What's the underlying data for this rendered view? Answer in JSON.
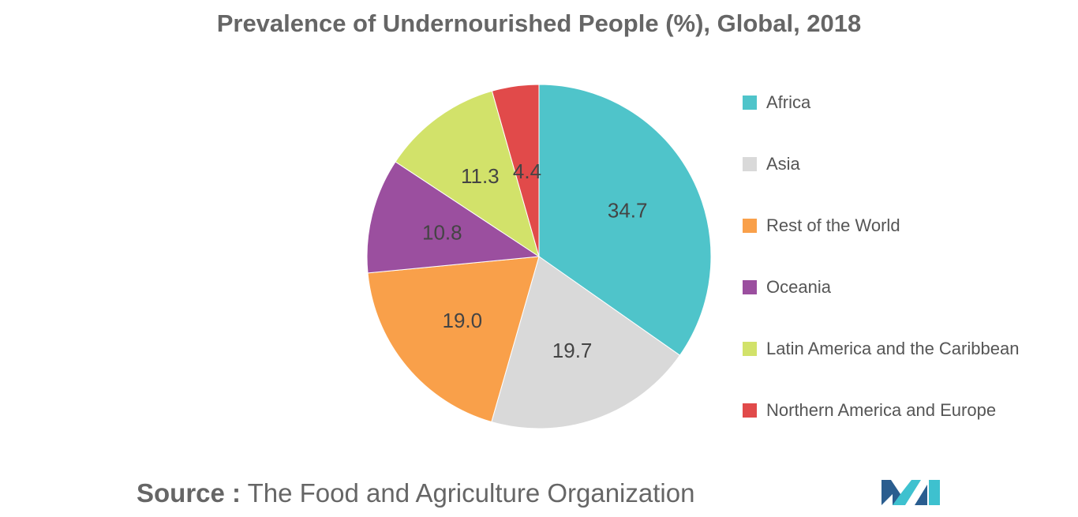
{
  "title": "Prevalence of Undernourished People (%), Global, 2018",
  "chart_data": {
    "type": "pie",
    "title": "Prevalence of Undernourished People (%), Global, 2018",
    "categories": [
      "Africa",
      "Asia",
      "Rest of the World",
      "Oceania",
      "Latin America and the Caribbean",
      "Northern America and Europe"
    ],
    "values": [
      34.7,
      19.7,
      19.0,
      10.8,
      11.3,
      4.4
    ],
    "value_labels": [
      "34.7",
      "19.7",
      "19.0",
      "10.8",
      "11.3",
      "4.4"
    ],
    "colors": [
      "#4fc4ca",
      "#d9d9d9",
      "#f9a04a",
      "#9b4f9f",
      "#d2e26a",
      "#e14a4a"
    ],
    "legend_position": "right"
  },
  "legend": [
    {
      "label": "Africa",
      "color": "#4fc4ca"
    },
    {
      "label": "Asia",
      "color": "#d9d9d9"
    },
    {
      "label": "Rest of the World",
      "color": "#f9a04a"
    },
    {
      "label": "Oceania",
      "color": "#9b4f9f"
    },
    {
      "label": "Latin America and the Caribbean",
      "color": "#d2e26a"
    },
    {
      "label": "Northern America and Europe",
      "color": "#e14a4a"
    }
  ],
  "source": {
    "label": "Source :",
    "text": " The Food and Agriculture Organization"
  },
  "logo": {
    "icon": "mordor-intelligence-logo-icon",
    "colors": [
      "#2a5d8f",
      "#3ec1cf"
    ]
  }
}
